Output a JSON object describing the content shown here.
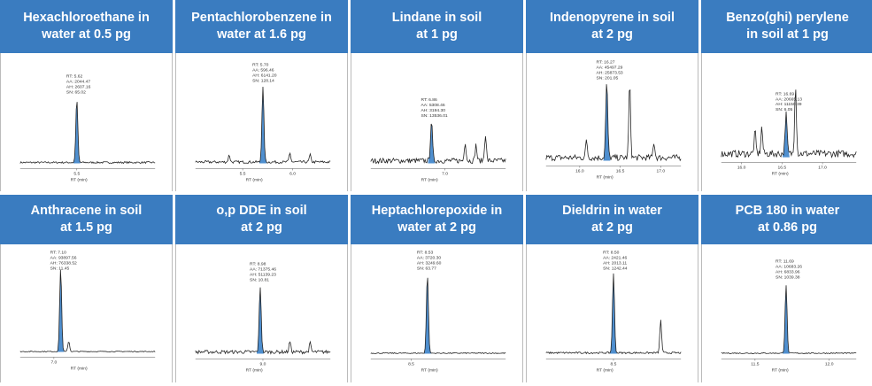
{
  "panels": [
    {
      "title_lines": [
        "Hexachloroethane in",
        "water at 0.5 pg"
      ],
      "annotation": [
        "RT: 5.62",
        "AA: 2044.47",
        "AH: 2607.16",
        "SN: 65.02"
      ],
      "ticks": [
        "5.5"
      ],
      "x_label": "RT (min)"
    },
    {
      "title_lines": [
        "Pentachlorobenzene in",
        "water at 1.6 pg"
      ],
      "annotation": [
        "RT: 5.70",
        "AA: 596.46",
        "AH: 6141.20",
        "SN: 128.14"
      ],
      "ticks": [
        "5.5",
        "6.0"
      ],
      "x_label": "RT (min)"
    },
    {
      "title_lines": [
        "Lindane in soil",
        "at 1 pg"
      ],
      "annotation": [
        "RT: 6.86",
        "AA: 5308.46",
        "AH: 3194.30",
        "SN: 13536.01"
      ],
      "ticks": [
        "7.0"
      ],
      "x_label": "RT (min)"
    },
    {
      "title_lines": [
        "Indenopyrene in soil",
        "at 2 pg"
      ],
      "annotation": [
        "RT: 16.27",
        "AA: 45497.29",
        "AH: 25873.53",
        "SN: 201.05"
      ],
      "ticks": [
        "16.0",
        "16.5",
        "17.0"
      ],
      "x_label": "RT (min)"
    },
    {
      "title_lines": [
        "Benzo(ghi) perylene",
        "in soil at 1 pg"
      ],
      "annotation": [
        "RT: 16.69",
        "AA: 20665.13",
        "AH: 11150.39",
        "SN: 6.05"
      ],
      "ticks": [
        "16.0",
        "16.5",
        "17.0"
      ],
      "x_label": "RT (min)"
    },
    {
      "title_lines": [
        "Anthracene in soil",
        "at 1.5 pg"
      ],
      "annotation": [
        "RT: 7.10",
        "AA: 93897.56",
        "AH: 76338.52",
        "SN: 11.45"
      ],
      "ticks": [
        "7.0"
      ],
      "x_label": "RT (min)"
    },
    {
      "title_lines": [
        "o,p DDE in soil",
        "at 2 pg"
      ],
      "annotation": [
        "RT: 8.98",
        "AA: 71375.46",
        "AH: 51139.23",
        "SN: 10.81"
      ],
      "ticks": [
        "9.0"
      ],
      "x_label": "RT (min)"
    },
    {
      "title_lines": [
        "Heptachlorepoxide in",
        "water at 2 pg"
      ],
      "annotation": [
        "RT: 8.53",
        "AA: 3720.30",
        "AH: 3249.60",
        "SN: 63.77"
      ],
      "ticks": [
        "8.5"
      ],
      "x_label": "RT (min)"
    },
    {
      "title_lines": [
        "Dieldrin in water",
        "at 2 pg"
      ],
      "annotation": [
        "RT: 8.50",
        "AA: 2421.46",
        "AH: 2013.11",
        "SN: 1242.44"
      ],
      "ticks": [
        "8.5"
      ],
      "x_label": "RT (min)"
    },
    {
      "title_lines": [
        "PCB 180 in water",
        "at 0.86 pg"
      ],
      "annotation": [
        "RT: 11.69",
        "AA: 10683.26",
        "AH: 6833.96",
        "SN: 1039.38"
      ],
      "ticks": [
        "11.5",
        "12.0"
      ],
      "x_label": "RT (min)"
    }
  ]
}
